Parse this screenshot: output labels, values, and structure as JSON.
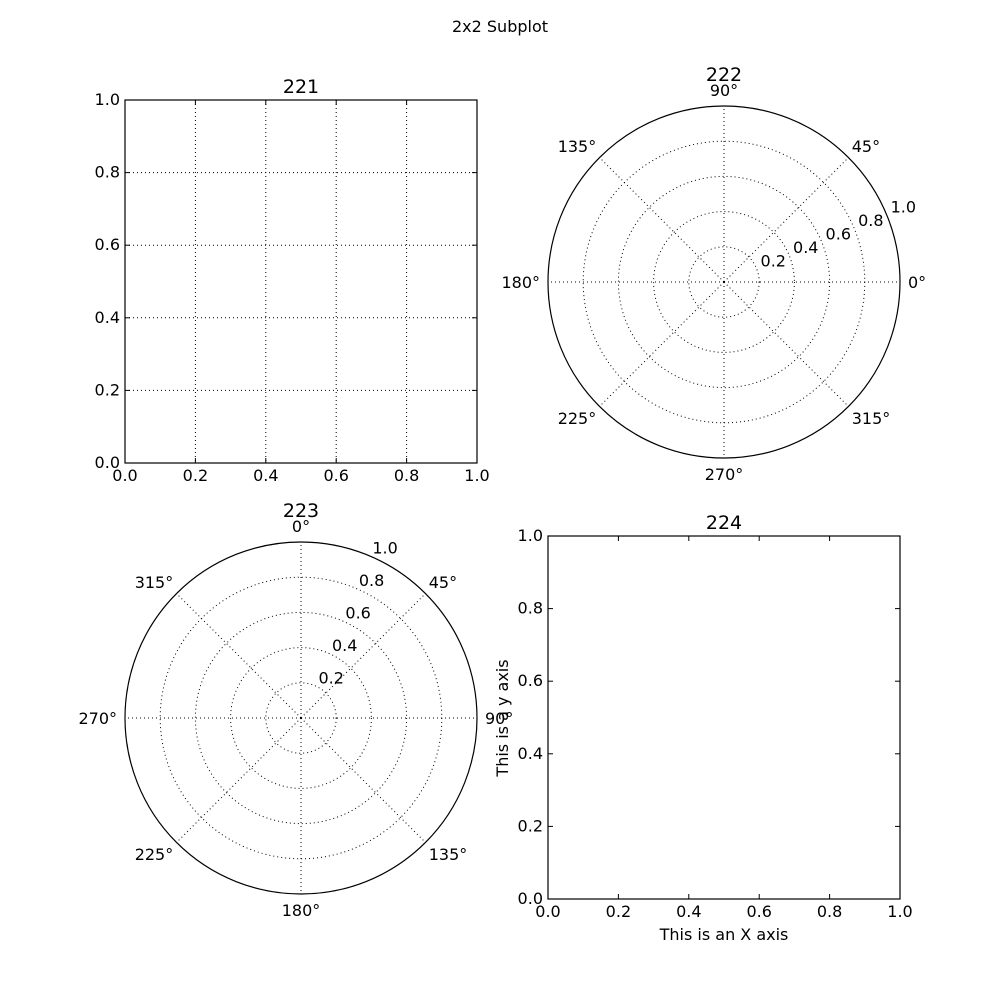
{
  "figure": {
    "suptitle": "2x2 Subplot"
  },
  "chart_data": [
    {
      "type": "scatter",
      "title": "221",
      "xlabel": "",
      "ylabel": "",
      "xlim": [
        0.0,
        1.0
      ],
      "ylim": [
        0.0,
        1.0
      ],
      "xticks": [
        "0.0",
        "0.2",
        "0.4",
        "0.6",
        "0.8",
        "1.0"
      ],
      "yticks": [
        "0.0",
        "0.2",
        "0.4",
        "0.6",
        "0.8",
        "1.0"
      ],
      "grid": true,
      "series": []
    },
    {
      "type": "polar",
      "title": "222",
      "theta_zero_location": "E",
      "theta_direction": "counterclockwise",
      "rlim": [
        0.0,
        1.0
      ],
      "rticks": [
        "0.2",
        "0.4",
        "0.6",
        "0.8",
        "1.0"
      ],
      "angle_labels": [
        "0°",
        "45°",
        "90°",
        "135°",
        "180°",
        "225°",
        "270°",
        "315°"
      ],
      "grid": true,
      "series": []
    },
    {
      "type": "polar",
      "title": "223",
      "theta_zero_location": "N",
      "theta_direction": "clockwise",
      "rlim": [
        0.0,
        1.0
      ],
      "rticks": [
        "0.2",
        "0.4",
        "0.6",
        "0.8",
        "1.0"
      ],
      "angle_labels": [
        "0°",
        "45°",
        "90°",
        "135°",
        "180°",
        "225°",
        "270°",
        "315°"
      ],
      "grid": true,
      "series": []
    },
    {
      "type": "scatter",
      "title": "224",
      "xlabel": "This is an X axis",
      "ylabel": "This is a y axis",
      "xlim": [
        0.0,
        1.0
      ],
      "ylim": [
        0.0,
        1.0
      ],
      "xticks": [
        "0.0",
        "0.2",
        "0.4",
        "0.6",
        "0.8",
        "1.0"
      ],
      "yticks": [
        "0.0",
        "0.2",
        "0.4",
        "0.6",
        "0.8",
        "1.0"
      ],
      "grid": false,
      "series": []
    }
  ]
}
